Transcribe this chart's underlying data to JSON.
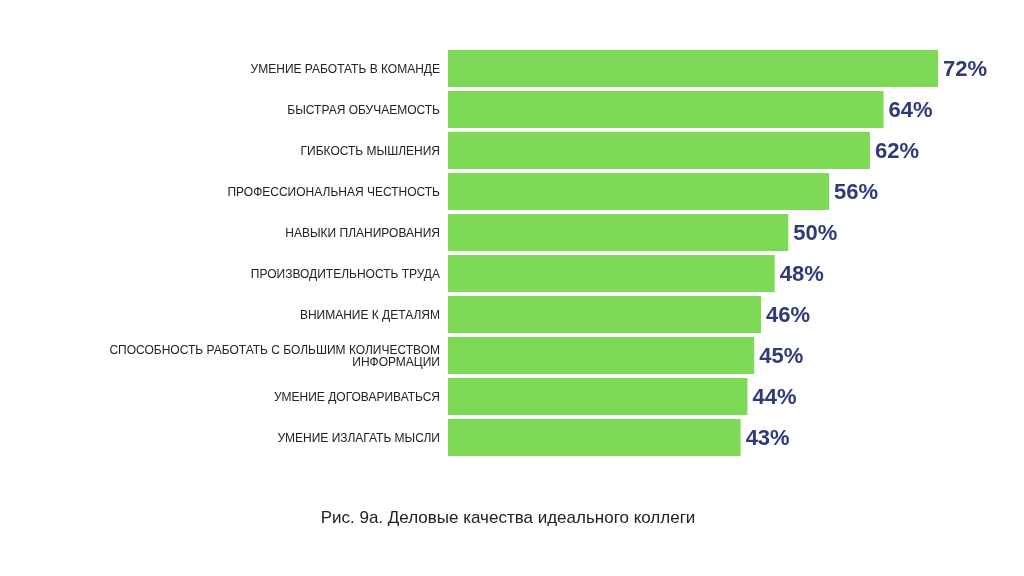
{
  "chart_data": {
    "type": "bar",
    "orientation": "horizontal",
    "title": "Рис. 9а. Деловые качества идеального коллеги",
    "categories": [
      "УМЕНИЕ РАБОТАТЬ В КОМАНДЕ",
      "БЫСТРАЯ ОБУЧАЕМОСТЬ",
      "ГИБКОСТЬ МЫШЛЕНИЯ",
      "ПРОФЕССИОНАЛЬНАЯ ЧЕСТНОСТЬ",
      "НАВЫКИ ПЛАНИРОВАНИЯ",
      "ПРОИЗВОДИТЕЛЬНОСТЬ ТРУДА",
      "ВНИМАНИЕ К ДЕТАЛЯМ",
      "СПОСОБНОСТЬ РАБОТАТЬ С БОЛЬШИМ КОЛИЧЕСТВОМ ИНФОРМАЦИИ",
      "УМЕНИЕ ДОГОВАРИВАТЬСЯ",
      "УМЕНИЕ ИЗЛАГАТЬ МЫСЛИ"
    ],
    "values": [
      72,
      64,
      62,
      56,
      50,
      48,
      46,
      45,
      44,
      43
    ],
    "value_labels": [
      "72%",
      "64%",
      "62%",
      "56%",
      "50%",
      "48%",
      "46%",
      "45%",
      "44%",
      "43%"
    ],
    "color": "#7ed957",
    "tick_labels": "y",
    "legend": false
  }
}
